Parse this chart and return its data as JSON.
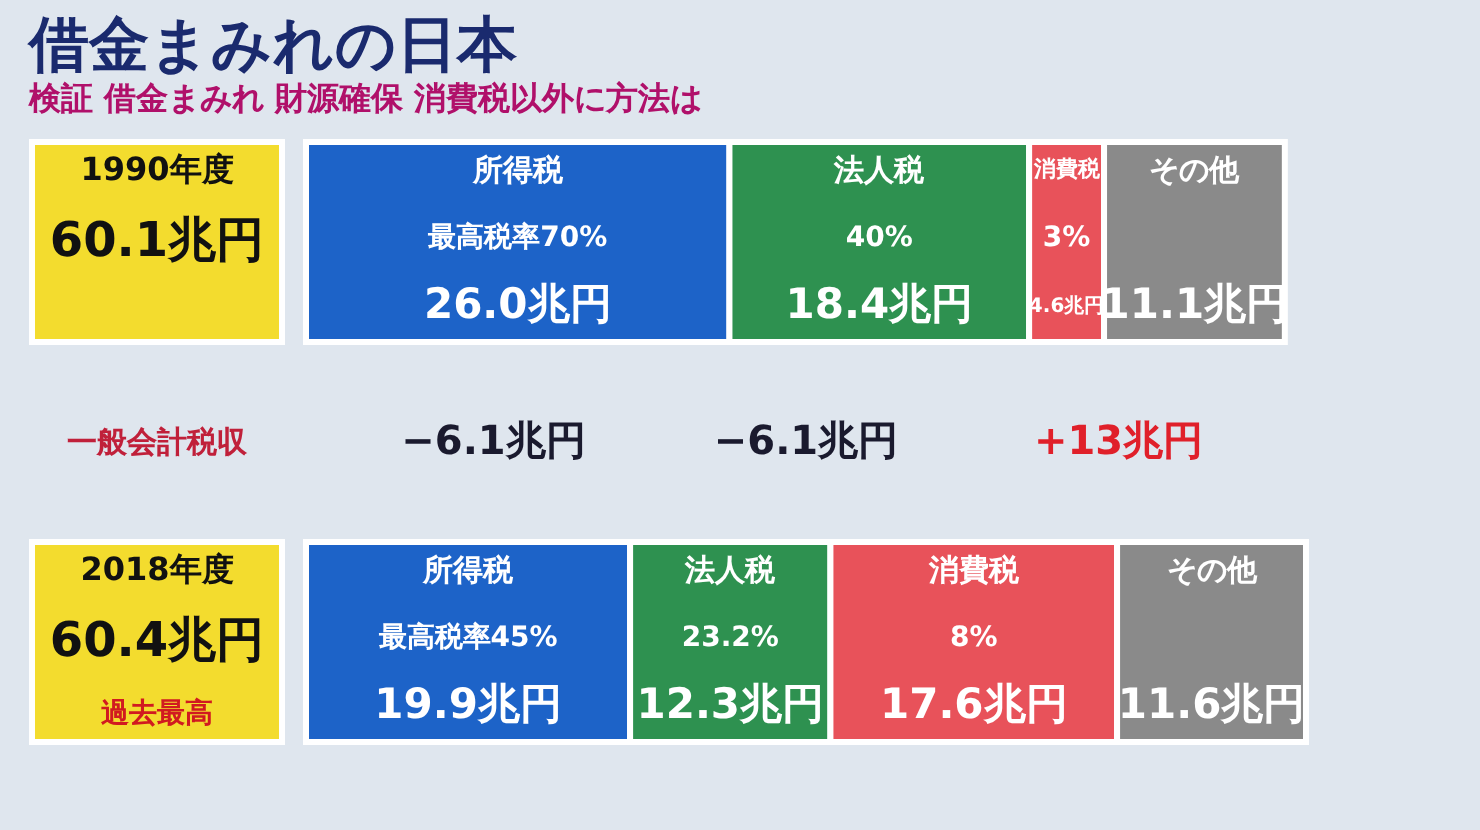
{
  "chart_data": {
    "type": "bar",
    "orientation": "horizontal",
    "stacked": true,
    "title": "借金まみれの日本",
    "subtitle": "検証 借金まみれ 財源確保 消費税以外に方法は",
    "categories": [
      "1990年度",
      "2018年度"
    ],
    "series": [
      {
        "name": "所得税",
        "color": "#1d63c8",
        "values": [
          26.0,
          19.9
        ],
        "value_labels": [
          "26.0兆円",
          "19.9兆円"
        ]
      },
      {
        "name": "法人税",
        "color": "#2e9150",
        "values": [
          18.4,
          12.3
        ],
        "value_labels": [
          "18.4兆円",
          "12.3兆円"
        ]
      },
      {
        "name": "消費税",
        "color": "#e8525a",
        "values": [
          4.6,
          17.6
        ],
        "value_labels": [
          "4.6兆円",
          "17.6兆円"
        ]
      },
      {
        "name": "その他",
        "color": "#8a8a8a",
        "values": [
          11.1,
          11.6
        ],
        "value_labels": [
          "11.1兆円",
          "11.6兆円"
        ]
      }
    ],
    "annotations": [
      "最高税率70%",
      "40%",
      "3%",
      "最高税率45%",
      "23.2%",
      "8%",
      "60.1兆円",
      "60.4兆円",
      "−6.1兆円",
      "−6.1兆円",
      "+13兆円",
      "過去最高",
      "一般会計税収"
    ],
    "legend": false,
    "tick_labels": "y"
  }
}
